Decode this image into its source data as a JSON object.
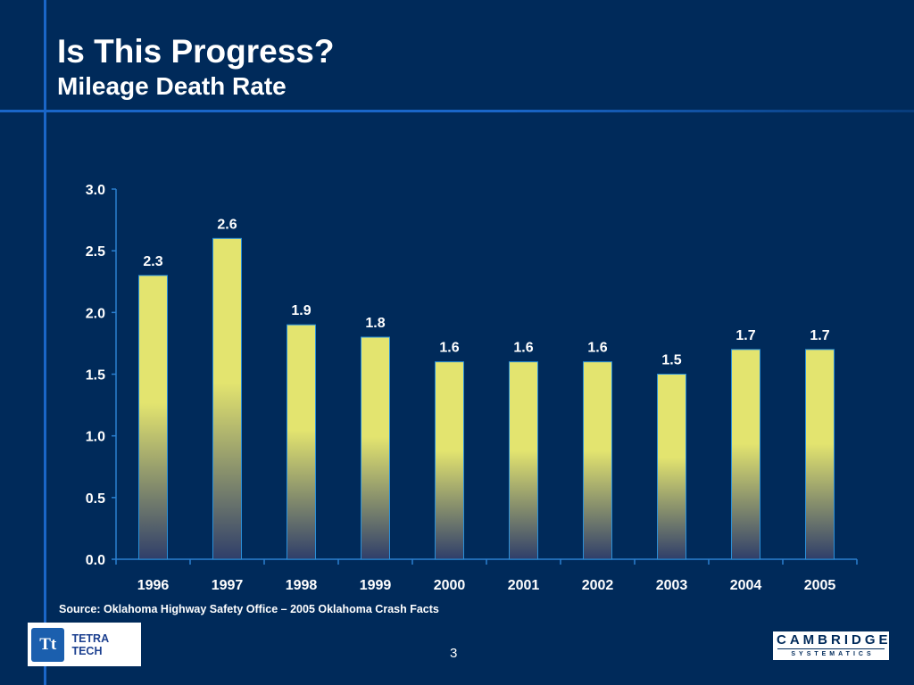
{
  "slide": {
    "title": "Is This Progress?",
    "subtitle": "Mileage Death Rate",
    "source": "Source: Oklahoma Highway Safety Office – 2005 Oklahoma Crash Facts",
    "page_number": "3"
  },
  "logos": {
    "left_mark": "Tt",
    "left_text": "TETRA TECH",
    "right_top": "CAMBRIDGE",
    "right_bottom": "SYSTEMATICS"
  },
  "colors": {
    "background": "#002a5a",
    "accent_line": "#1a66c8",
    "bar_top": "#e3e46f",
    "bar_bottom": "#2f3e6a",
    "text": "#ffffff"
  },
  "chart_data": {
    "type": "bar",
    "categories": [
      "1996",
      "1997",
      "1998",
      "1999",
      "2000",
      "2001",
      "2002",
      "2003",
      "2004",
      "2005"
    ],
    "values": [
      2.3,
      2.6,
      1.9,
      1.8,
      1.6,
      1.6,
      1.6,
      1.5,
      1.7,
      1.7
    ],
    "value_labels": [
      "2.3",
      "2.6",
      "1.9",
      "1.8",
      "1.6",
      "1.6",
      "1.6",
      "1.5",
      "1.7",
      "1.7"
    ],
    "title": "",
    "xlabel": "",
    "ylabel": "",
    "ylim": [
      0,
      3.0
    ],
    "yticks": [
      0.0,
      0.5,
      1.0,
      1.5,
      2.0,
      2.5,
      3.0
    ],
    "ytick_labels": [
      "0.0",
      "0.5",
      "1.0",
      "1.5",
      "2.0",
      "2.5",
      "3.0"
    ],
    "grid": false,
    "legend": "none"
  }
}
